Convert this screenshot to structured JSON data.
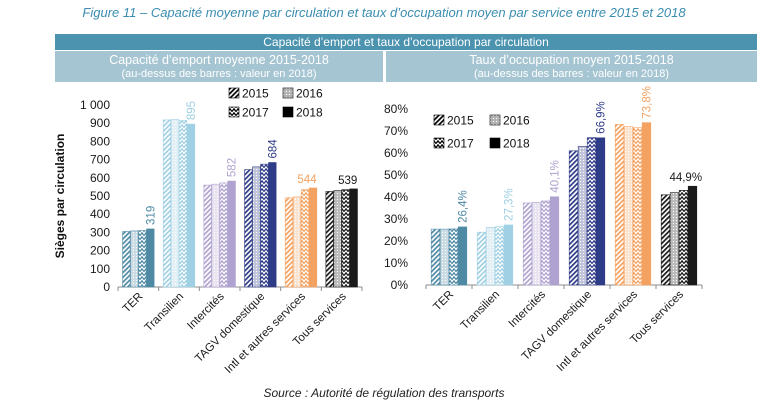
{
  "figure_title": "Figure 11 – Capacité moyenne par circulation et taux d’occupation moyen par service entre 2015 et 2018",
  "panel_header": "Capacité d’emport et taux d’occupation par circulation",
  "source": "Source : Autorité de régulation des transports",
  "colors": {
    "title": "#3a8db0",
    "panel_header_bg": "#4b93ae",
    "subheader_bg": "#a6c5d2",
    "header_text": "#ffffff",
    "axis": "#8c8c8c",
    "legend": "#000000",
    "categories": [
      "#4f8aa5",
      "#9fd0e4",
      "#b0a2d0",
      "#2e3b86",
      "#f4a261",
      "#1a1a1a"
    ]
  },
  "chart_data": [
    {
      "type": "bar",
      "title": "Capacité d’emport moyenne 2015-2018",
      "subtitle": "(au-dessus des barres : valeur en 2018)",
      "ylabel": "Sièges par circulation",
      "ylim": [
        0,
        1000
      ],
      "yticks": [
        0,
        100,
        200,
        300,
        400,
        500,
        600,
        700,
        800,
        900,
        1000
      ],
      "ytick_labels": [
        "0",
        "100",
        "200",
        "300",
        "400",
        "500",
        "600",
        "700",
        "800",
        "900",
        "1 000"
      ],
      "categories": [
        "TER",
        "Transilien",
        "Intercités",
        "TAGV domestique",
        "Intl et autres services",
        "Tous services"
      ],
      "series": [
        {
          "name": "2015",
          "values": [
            305,
            918,
            560,
            645,
            490,
            525
          ]
        },
        {
          "name": "2016",
          "values": [
            308,
            920,
            565,
            660,
            495,
            530
          ]
        },
        {
          "name": "2017",
          "values": [
            310,
            915,
            572,
            675,
            535,
            535
          ]
        },
        {
          "name": "2018",
          "values": [
            319,
            895,
            582,
            684,
            544,
            539
          ]
        }
      ],
      "data_labels": [
        "319",
        "895",
        "582",
        "684",
        "544",
        "539"
      ],
      "legend_position": "top-center",
      "grid": false
    },
    {
      "type": "bar",
      "title": "Taux d’occupation moyen 2015-2018",
      "subtitle": "(au-dessus des barres : valeur en 2018)",
      "ylim": [
        0,
        80
      ],
      "yticks": [
        0,
        10,
        20,
        30,
        40,
        50,
        60,
        70,
        80
      ],
      "ytick_labels": [
        "0%",
        "10%",
        "20%",
        "30%",
        "40%",
        "50%",
        "60%",
        "70%",
        "80%"
      ],
      "categories": [
        "TER",
        "Transilien",
        "Intercités",
        "TAGV domestique",
        "Intl et autres services",
        "Tous services"
      ],
      "series": [
        {
          "name": "2015",
          "values": [
            25.4,
            24.0,
            37.3,
            61.0,
            73.0,
            41.0
          ]
        },
        {
          "name": "2016",
          "values": [
            25.4,
            26.2,
            37.5,
            63.0,
            72.0,
            42.0
          ]
        },
        {
          "name": "2017",
          "values": [
            25.5,
            26.5,
            38.2,
            67.0,
            71.5,
            43.0
          ]
        },
        {
          "name": "2018",
          "values": [
            26.4,
            27.3,
            40.1,
            66.9,
            73.8,
            44.9
          ]
        }
      ],
      "data_labels": [
        "26,4%",
        "27,3%",
        "40,1%",
        "66,9%",
        "73,8%",
        "44,9%"
      ],
      "legend_position": "top-left",
      "grid": false
    }
  ]
}
